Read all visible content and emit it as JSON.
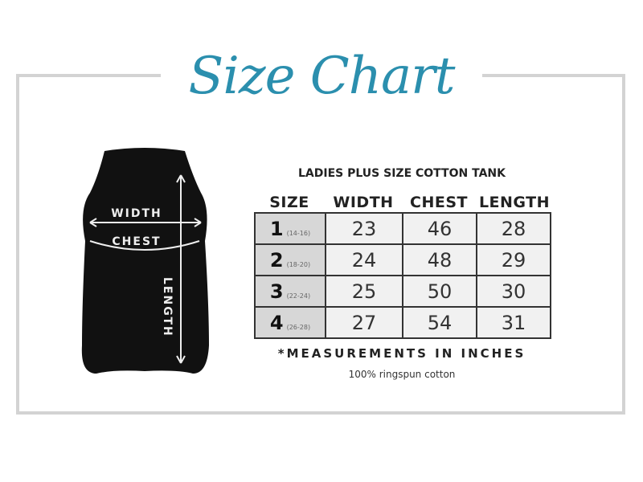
{
  "title": "Size Chart",
  "colors": {
    "title": "#2b8fae",
    "frame": "#d3d3d3"
  },
  "tank_labels": {
    "width": "WIDTH",
    "chest": "CHEST",
    "length": "LENGTH"
  },
  "table_title": "LADIES PLUS SIZE COTTON TANK",
  "headers": [
    "SIZE",
    "WIDTH",
    "CHEST",
    "LENGTH"
  ],
  "rows": [
    {
      "size": "1",
      "range": "(14-16)",
      "width": "23",
      "chest": "46",
      "length": "28"
    },
    {
      "size": "2",
      "range": "(18-20)",
      "width": "24",
      "chest": "48",
      "length": "29"
    },
    {
      "size": "3",
      "range": "(22-24)",
      "width": "25",
      "chest": "50",
      "length": "30"
    },
    {
      "size": "4",
      "range": "(26-28)",
      "width": "27",
      "chest": "54",
      "length": "31"
    }
  ],
  "note": "*MEASUREMENTS IN INCHES",
  "material": "100% ringspun cotton"
}
